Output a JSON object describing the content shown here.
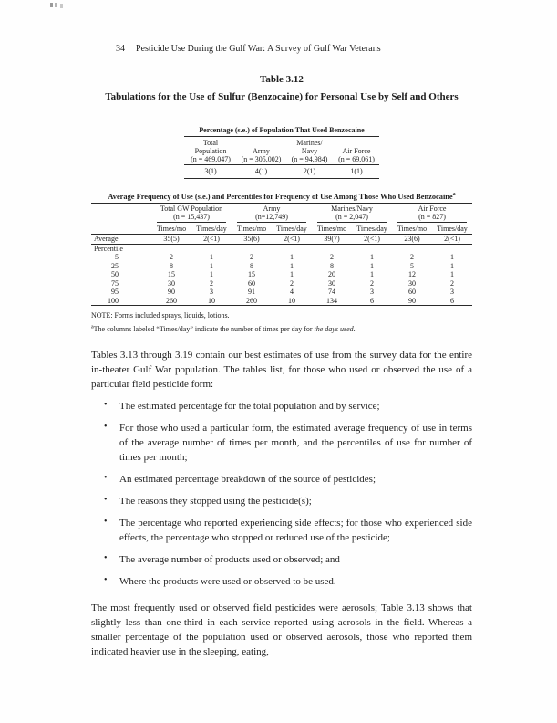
{
  "colors": {
    "ink": "#1d1d1d",
    "rule": "#2a2a2a",
    "paper": "#fefefe"
  },
  "header": {
    "page_number": "34",
    "running_title": "Pesticide Use During the Gulf War:  A Survey of Gulf War Veterans"
  },
  "heading": {
    "table_label": "Table 3.12",
    "table_title": "Tabulations for the Use of Sulfur (Benzocaine) for Personal Use by Self and Others"
  },
  "table1": {
    "title": "Percentage (s.e.) of Population That Used Benzocaine",
    "columns": [
      {
        "header_lines": [
          "Total",
          "Population",
          "(n = 469,047)"
        ],
        "value": "3(1)"
      },
      {
        "header_lines": [
          "",
          "Army",
          "(n = 305,002)"
        ],
        "value": "4(1)"
      },
      {
        "header_lines": [
          "Marines/",
          "Navy",
          "(n = 94,984)"
        ],
        "value": "2(1)"
      },
      {
        "header_lines": [
          "",
          "Air Force",
          "(n = 69,061)"
        ],
        "value": "1(1)"
      }
    ]
  },
  "table2": {
    "title": "Average Frequency of Use (s.e.) and Percentiles for Frequency of Use Among Those Who Used Benzocaine",
    "title_sup": "a",
    "groups": [
      {
        "line1": "Total GW  Population",
        "line2": "(n = 15,437)"
      },
      {
        "line1": "Army",
        "line2": "(n=12,749)"
      },
      {
        "line1": "Marines/Navy",
        "line2": "(n = 2,047)"
      },
      {
        "line1": "Air Force",
        "line2": "(n = 827)"
      }
    ],
    "subheaders": [
      "Times/mo",
      "Times/day"
    ],
    "rows": [
      {
        "label": "Average",
        "values": [
          "35(5)",
          "2(<1)",
          "35(6)",
          "2(<1)",
          "39(7)",
          "2(<1)",
          "23(6)",
          "2(<1)"
        ],
        "rule_below": true
      },
      {
        "label": "Percentile",
        "values": []
      },
      {
        "label": "5",
        "values": [
          "2",
          "1",
          "2",
          "1",
          "2",
          "1",
          "2",
          "1"
        ]
      },
      {
        "label": "25",
        "values": [
          "8",
          "1",
          "8",
          "1",
          "8",
          "1",
          "5",
          "1"
        ]
      },
      {
        "label": "50",
        "values": [
          "15",
          "1",
          "15",
          "1",
          "20",
          "1",
          "12",
          "1"
        ]
      },
      {
        "label": "75",
        "values": [
          "30",
          "2",
          "60",
          "2",
          "30",
          "2",
          "30",
          "2"
        ]
      },
      {
        "label": "95",
        "values": [
          "90",
          "3",
          "91",
          "4",
          "74",
          "3",
          "60",
          "3"
        ]
      },
      {
        "label": "100",
        "values": [
          "260",
          "10",
          "260",
          "10",
          "134",
          "6",
          "90",
          "6"
        ]
      }
    ],
    "note": "NOTE:  Forms included sprays, liquids, lotions.",
    "footnote": {
      "marker": "a",
      "pre": "The columns labeled “Times/day” indicate the number of times per day for ",
      "italic": "the days used",
      "post": "."
    }
  },
  "body": {
    "paragraph1": "Tables 3.13 through 3.19 contain our best estimates of use from the survey data for the entire in-theater Gulf War population.  The tables list, for those who used or observed the use of a particular field pesticide form:",
    "bullet_char": "•",
    "bullets": [
      "The estimated percentage for the total population and by service;",
      "For those who used a particular form, the estimated average frequency of use in terms of the average number of times per month, and the percentiles of use for number of times per month;",
      "An estimated percentage breakdown of the source of pesticides;",
      "The reasons they stopped using the pesticide(s);",
      "The percentage who reported experiencing side effects; for those who experienced side effects, the percentage who stopped or reduced use of the pesticide;",
      "The average number of products used or observed; and",
      "Where the products were used or observed to be used."
    ],
    "paragraph2": "The most frequently used or observed field pesticides were aerosols; Table 3.13 shows that slightly less than one-third in each service reported using aerosols in the field.  Whereas a smaller percentage of the population used or observed aerosols, those who reported them indicated heavier use in the sleeping, eating,"
  }
}
